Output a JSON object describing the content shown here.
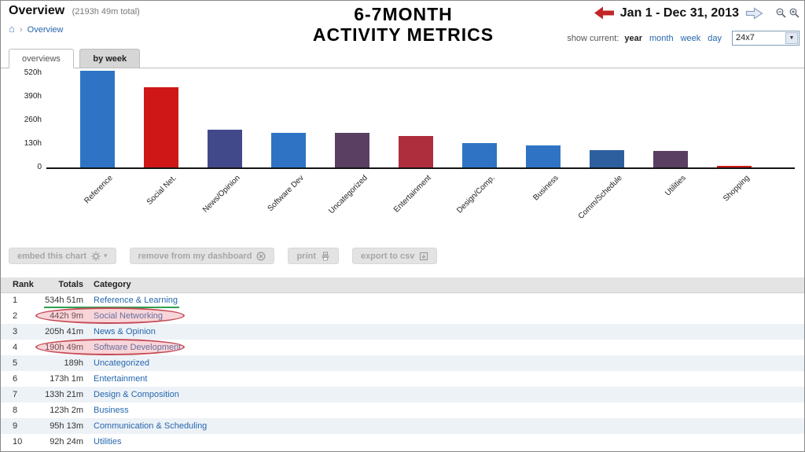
{
  "header": {
    "title": "Overview",
    "total_label": "(2193h 49m total)",
    "breadcrumb": {
      "home": "⌂",
      "separator": "›",
      "current": "Overview"
    },
    "date_range": "Jan 1 - Dec 31, 2013",
    "show_current_label": "show current:",
    "periods": [
      "year",
      "month",
      "week",
      "day"
    ],
    "active_period": "year",
    "schedule_filter": "24x7",
    "dropdown_arrow": "▼"
  },
  "annotations": {
    "headline_line1": "6-7MONTH",
    "headline_line2": "ACTIVITY METRICS"
  },
  "tabs": [
    {
      "label": "overviews",
      "active": true
    },
    {
      "label": "by week",
      "active": false
    }
  ],
  "chart_data": {
    "type": "bar",
    "title": "",
    "xlabel": "",
    "ylabel": "",
    "categories": [
      "Reference",
      "Social Net.",
      "News/Opinion",
      "Software Dev",
      "Uncategorized",
      "Entertainment",
      "Design/Comp.",
      "Business",
      "Comm/Schedule",
      "Utilities",
      "Shopping"
    ],
    "values": [
      535,
      442,
      206,
      191,
      189,
      173,
      133,
      123,
      95,
      92,
      9
    ],
    "colors": [
      "#2f74c4",
      "#cf1717",
      "#42498a",
      "#2f74c4",
      "#5a3f63",
      "#ae2e3e",
      "#2f74c4",
      "#2f74c4",
      "#2d5f9f",
      "#5a3f63",
      "#cf1717"
    ],
    "yticks": [
      {
        "label": "520h",
        "value": 520
      },
      {
        "label": "390h",
        "value": 390
      },
      {
        "label": "260h",
        "value": 260
      },
      {
        "label": "130h",
        "value": 130
      },
      {
        "label": "0",
        "value": 0
      }
    ],
    "ylim": [
      0,
      560
    ],
    "grid": false,
    "legend": false
  },
  "actions": [
    {
      "label": "embed this chart",
      "icon": "gear-icon",
      "caret": "▾"
    },
    {
      "label": "remove from my dashboard",
      "icon": "remove-icon"
    },
    {
      "label": "print",
      "icon": "printer-icon"
    },
    {
      "label": "export to csv",
      "icon": "export-icon"
    }
  ],
  "table": {
    "headers": {
      "rank": "Rank",
      "totals": "Totals",
      "category": "Category"
    },
    "rows": [
      {
        "rank": "1",
        "total": "534h 51m",
        "category": "Reference & Learning"
      },
      {
        "rank": "2",
        "total": "442h 9m",
        "category": "Social Networking"
      },
      {
        "rank": "3",
        "total": "205h 41m",
        "category": "News & Opinion"
      },
      {
        "rank": "4",
        "total": "190h 49m",
        "category": "Software Development"
      },
      {
        "rank": "5",
        "total": "189h",
        "category": "Uncategorized"
      },
      {
        "rank": "6",
        "total": "173h 1m",
        "category": "Entertainment"
      },
      {
        "rank": "7",
        "total": "133h 21m",
        "category": "Design & Composition"
      },
      {
        "rank": "8",
        "total": "123h 2m",
        "category": "Business"
      },
      {
        "rank": "9",
        "total": "95h 13m",
        "category": "Communication & Scheduling"
      },
      {
        "rank": "10",
        "total": "92h 24m",
        "category": "Utilities"
      }
    ]
  }
}
